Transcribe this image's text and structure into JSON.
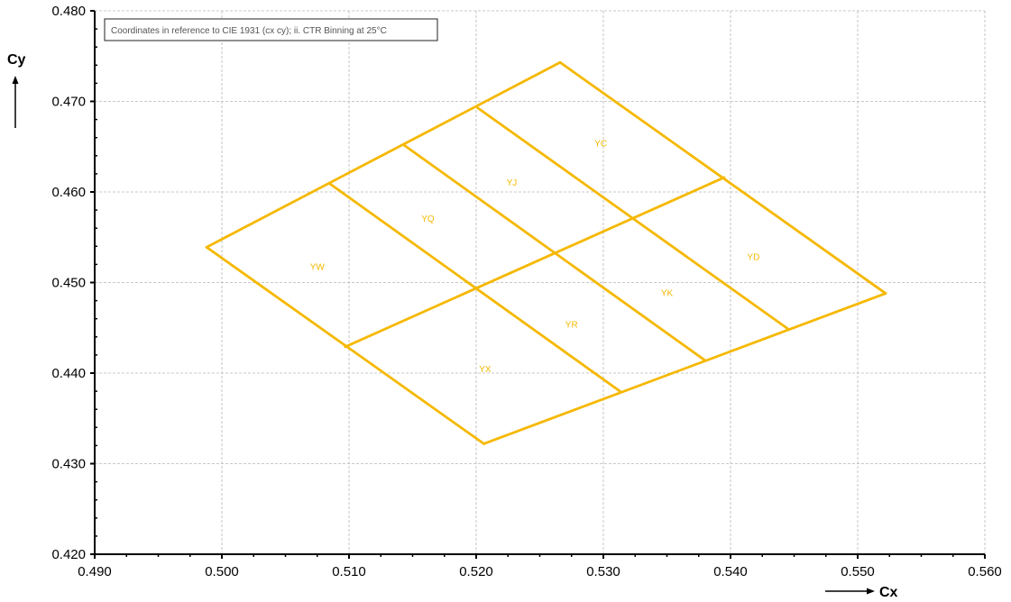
{
  "chart_data": {
    "type": "line",
    "note": "Coordinates in reference to CIE 1931 (cx cy); ii. CTR Binning at 25°C",
    "xlabel": "Cx",
    "ylabel": "Cy",
    "xlim": [
      0.49,
      0.56
    ],
    "ylim": [
      0.42,
      0.48
    ],
    "x_ticks": [
      "0.490",
      "0.500",
      "0.510",
      "0.520",
      "0.530",
      "0.540",
      "0.550",
      "0.560"
    ],
    "y_ticks": [
      "0.420",
      "0.430",
      "0.440",
      "0.450",
      "0.460",
      "0.470",
      "0.480"
    ],
    "grid": true,
    "color": "#F5B800",
    "segments": [
      [
        [
          0.4988,
          0.4539
        ],
        [
          0.5266,
          0.4743
        ]
      ],
      [
        [
          0.5266,
          0.4743
        ],
        [
          0.5522,
          0.4488
        ]
      ],
      [
        [
          0.5522,
          0.4488
        ],
        [
          0.5206,
          0.4322
        ]
      ],
      [
        [
          0.5206,
          0.4322
        ],
        [
          0.4988,
          0.4539
        ]
      ],
      [
        [
          0.5097,
          0.4429
        ],
        [
          0.5395,
          0.4616
        ]
      ],
      [
        [
          0.5085,
          0.4609
        ],
        [
          0.5314,
          0.4379
        ]
      ],
      [
        [
          0.5143,
          0.4652
        ],
        [
          0.538,
          0.4414
        ]
      ],
      [
        [
          0.5201,
          0.4693
        ],
        [
          0.5445,
          0.4449
        ]
      ]
    ],
    "bins": [
      {
        "name": "YW",
        "x": 0.5075,
        "y": 0.4518
      },
      {
        "name": "YQ",
        "x": 0.5162,
        "y": 0.4571
      },
      {
        "name": "YJ",
        "x": 0.5228,
        "y": 0.4611
      },
      {
        "name": "YC",
        "x": 0.5298,
        "y": 0.4654
      },
      {
        "name": "YX",
        "x": 0.5207,
        "y": 0.4405
      },
      {
        "name": "YR",
        "x": 0.5275,
        "y": 0.4454
      },
      {
        "name": "YK",
        "x": 0.535,
        "y": 0.4489
      },
      {
        "name": "YD",
        "x": 0.5418,
        "y": 0.4529
      }
    ]
  }
}
